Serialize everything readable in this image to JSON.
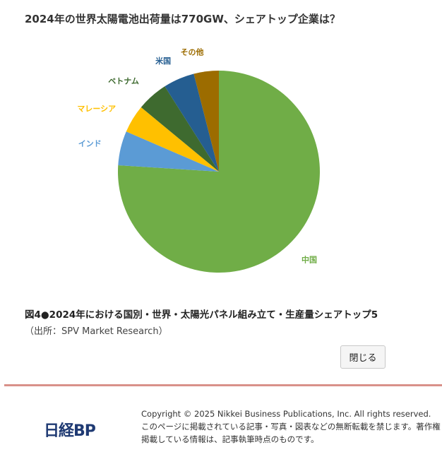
{
  "title": "2024年の世界太陽電池出荷量は770GW、シェアトップ企業は？",
  "chart_data": {
    "type": "pie",
    "title": "",
    "categories": [
      "中国",
      "インド",
      "マレーシア",
      "ベトナム",
      "米国",
      "その他"
    ],
    "values": [
      76,
      5.5,
      4.5,
      5,
      5,
      4
    ],
    "colors": [
      "#70ad47",
      "#5b9bd5",
      "#ffc000",
      "#3e6a2f",
      "#255e91",
      "#9c6c00"
    ],
    "label_colors": [
      "#70ad47",
      "#5b9bd5",
      "#ffc000",
      "#3e6a2f",
      "#255e91",
      "#9c6c00"
    ],
    "start_angle_deg": 0,
    "direction": "clockwise",
    "legend": "none"
  },
  "caption": "図4●2024年における国別・世界・太陽光パネル組み立て・生産量シェアトップ5",
  "source": "（出所：SPV Market Research）",
  "close_button": "閉じる",
  "logo": "日経BP",
  "footer": {
    "copyright": "Copyright © 2025 Nikkei Business Publications, Inc. All rights reserved.",
    "notice1": "このページに掲載されている記事・写真・図表などの無断転載を禁じます。著作権",
    "notice2": "掲載している情報は、記事執筆時点のものです。"
  }
}
